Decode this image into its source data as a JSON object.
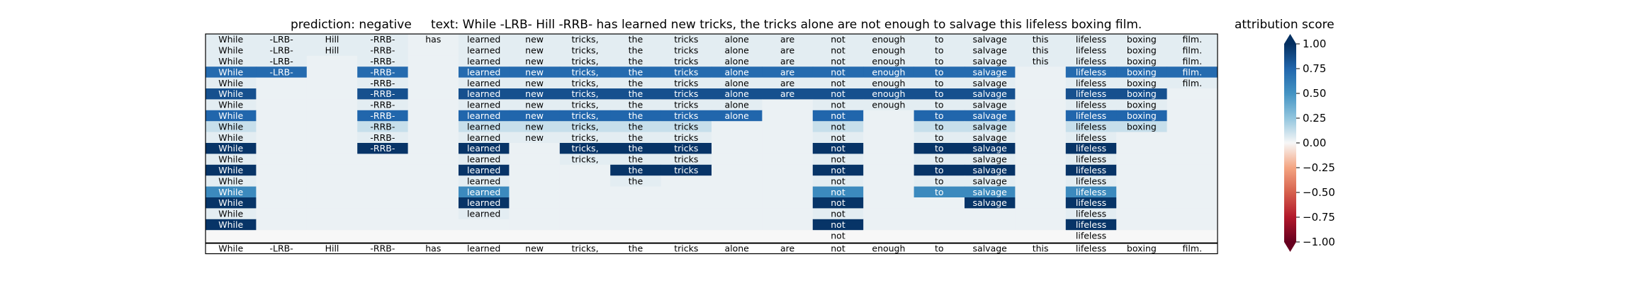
{
  "chart_data": {
    "type": "heatmap",
    "title_prediction": "prediction:  negative",
    "title_text": "text:  While -LRB- Hill -RRB- has learned new tricks, the tricks alone are not enough to salvage this lifeless boxing film.",
    "colorbar_label": "attribution score",
    "colorbar_ticks": [
      "1.00",
      "0.75",
      "0.50",
      "0.25",
      "0.00",
      "−0.25",
      "−0.50",
      "−0.75",
      "−1.00"
    ],
    "colorbar_range": [
      -1,
      1
    ],
    "tokens": [
      "While",
      "-LRB-",
      "Hill",
      "-RRB-",
      "has",
      "learned",
      "new",
      "tricks,",
      "the",
      "tricks",
      "alone",
      "are",
      "not",
      "enough",
      "to",
      "salvage",
      "this",
      "lifeless",
      "boxing",
      "film."
    ],
    "rows": [
      {
        "values": [
          0.05,
          0.05,
          0.05,
          0.05,
          0.03,
          0.05,
          0.05,
          0.05,
          0.05,
          0.05,
          0.05,
          0.05,
          0.05,
          0.05,
          0.05,
          0.05,
          0.05,
          0.05,
          0.05,
          0.05
        ],
        "shown": [
          1,
          1,
          1,
          1,
          1,
          1,
          1,
          1,
          1,
          1,
          1,
          1,
          1,
          1,
          1,
          1,
          1,
          1,
          1,
          1
        ]
      },
      {
        "values": [
          0.05,
          0.05,
          0.05,
          0.05,
          0.03,
          0.05,
          0.05,
          0.05,
          0.05,
          0.05,
          0.05,
          0.05,
          0.05,
          0.05,
          0.05,
          0.05,
          0.05,
          0.05,
          0.05,
          0.05
        ],
        "shown": [
          1,
          1,
          1,
          1,
          0,
          1,
          1,
          1,
          1,
          1,
          1,
          1,
          1,
          1,
          1,
          1,
          1,
          1,
          1,
          1
        ]
      },
      {
        "values": [
          0.05,
          0.05,
          0.03,
          0.05,
          0.03,
          0.05,
          0.05,
          0.05,
          0.05,
          0.05,
          0.05,
          0.05,
          0.05,
          0.05,
          0.05,
          0.05,
          0.05,
          0.05,
          0.05,
          0.05
        ],
        "shown": [
          1,
          1,
          0,
          1,
          0,
          1,
          1,
          1,
          1,
          1,
          1,
          1,
          1,
          1,
          1,
          1,
          1,
          1,
          1,
          1
        ]
      },
      {
        "values": [
          0.72,
          0.72,
          0.03,
          0.72,
          0.03,
          0.72,
          0.72,
          0.72,
          0.72,
          0.72,
          0.72,
          0.72,
          0.72,
          0.72,
          0.72,
          0.72,
          0.03,
          0.72,
          0.72,
          0.72
        ],
        "shown": [
          1,
          1,
          0,
          1,
          0,
          1,
          1,
          1,
          1,
          1,
          1,
          1,
          1,
          1,
          1,
          1,
          0,
          1,
          1,
          1
        ]
      },
      {
        "values": [
          0.05,
          0.03,
          0.03,
          0.05,
          0.03,
          0.05,
          0.05,
          0.05,
          0.05,
          0.05,
          0.05,
          0.05,
          0.05,
          0.05,
          0.05,
          0.05,
          0.03,
          0.05,
          0.05,
          0.05
        ],
        "shown": [
          1,
          0,
          0,
          1,
          0,
          1,
          1,
          1,
          1,
          1,
          1,
          1,
          1,
          1,
          1,
          1,
          0,
          1,
          1,
          1
        ]
      },
      {
        "values": [
          0.85,
          0.03,
          0.03,
          0.85,
          0.03,
          0.85,
          0.85,
          0.85,
          0.85,
          0.85,
          0.85,
          0.85,
          0.85,
          0.85,
          0.85,
          0.85,
          0.03,
          0.85,
          0.85,
          0.03
        ],
        "shown": [
          1,
          0,
          0,
          1,
          0,
          1,
          1,
          1,
          1,
          1,
          1,
          1,
          1,
          1,
          1,
          1,
          0,
          1,
          1,
          0
        ]
      },
      {
        "values": [
          0.05,
          0.03,
          0.03,
          0.05,
          0.03,
          0.05,
          0.05,
          0.05,
          0.05,
          0.05,
          0.05,
          0.03,
          0.05,
          0.05,
          0.05,
          0.05,
          0.03,
          0.05,
          0.05,
          0.03
        ],
        "shown": [
          1,
          0,
          0,
          1,
          0,
          1,
          1,
          1,
          1,
          1,
          1,
          0,
          1,
          1,
          1,
          1,
          0,
          1,
          1,
          0
        ]
      },
      {
        "values": [
          0.75,
          0.03,
          0.03,
          0.75,
          0.03,
          0.75,
          0.75,
          0.75,
          0.75,
          0.75,
          0.75,
          0.03,
          0.75,
          0.03,
          0.75,
          0.75,
          0.03,
          0.75,
          0.75,
          0.03
        ],
        "shown": [
          1,
          0,
          0,
          1,
          0,
          1,
          1,
          1,
          1,
          1,
          1,
          0,
          1,
          0,
          1,
          1,
          0,
          1,
          1,
          0
        ]
      },
      {
        "values": [
          0.12,
          0.03,
          0.03,
          0.12,
          0.03,
          0.12,
          0.12,
          0.12,
          0.12,
          0.12,
          0.03,
          0.03,
          0.12,
          0.03,
          0.12,
          0.12,
          0.03,
          0.12,
          0.12,
          0.03
        ],
        "shown": [
          1,
          0,
          0,
          1,
          0,
          1,
          1,
          1,
          1,
          1,
          0,
          0,
          1,
          0,
          1,
          1,
          0,
          1,
          1,
          0
        ]
      },
      {
        "values": [
          0.05,
          0.03,
          0.03,
          0.05,
          0.03,
          0.05,
          0.05,
          0.05,
          0.05,
          0.05,
          0.03,
          0.03,
          0.05,
          0.03,
          0.05,
          0.05,
          0.03,
          0.05,
          0.03,
          0.03
        ],
        "shown": [
          1,
          0,
          0,
          1,
          0,
          1,
          1,
          1,
          1,
          1,
          0,
          0,
          1,
          0,
          1,
          1,
          0,
          1,
          0,
          0
        ]
      },
      {
        "values": [
          0.98,
          0.03,
          0.03,
          0.98,
          0.03,
          0.98,
          0.03,
          0.98,
          0.98,
          0.98,
          0.03,
          0.03,
          0.98,
          0.03,
          0.98,
          0.98,
          0.03,
          0.98,
          0.03,
          0.03
        ],
        "shown": [
          1,
          0,
          0,
          1,
          0,
          1,
          0,
          1,
          1,
          1,
          0,
          0,
          1,
          0,
          1,
          1,
          0,
          1,
          0,
          0
        ]
      },
      {
        "values": [
          0.05,
          0.03,
          0.03,
          0.03,
          0.03,
          0.05,
          0.03,
          0.05,
          0.05,
          0.05,
          0.03,
          0.03,
          0.05,
          0.03,
          0.05,
          0.05,
          0.03,
          0.05,
          0.03,
          0.03
        ],
        "shown": [
          1,
          0,
          0,
          0,
          0,
          1,
          0,
          1,
          1,
          1,
          0,
          0,
          1,
          0,
          1,
          1,
          0,
          1,
          0,
          0
        ]
      },
      {
        "values": [
          0.98,
          0.03,
          0.03,
          0.03,
          0.03,
          0.98,
          0.03,
          0.03,
          0.98,
          0.98,
          0.03,
          0.03,
          0.98,
          0.03,
          0.98,
          0.98,
          0.03,
          0.98,
          0.03,
          0.03
        ],
        "shown": [
          1,
          0,
          0,
          0,
          0,
          1,
          0,
          0,
          1,
          1,
          0,
          0,
          1,
          0,
          1,
          1,
          0,
          1,
          0,
          0
        ]
      },
      {
        "values": [
          0.05,
          0.03,
          0.03,
          0.03,
          0.03,
          0.05,
          0.03,
          0.03,
          0.05,
          0.03,
          0.03,
          0.03,
          0.05,
          0.03,
          0.05,
          0.05,
          0.03,
          0.05,
          0.03,
          0.03
        ],
        "shown": [
          1,
          0,
          0,
          0,
          0,
          1,
          0,
          0,
          1,
          0,
          0,
          0,
          1,
          0,
          1,
          1,
          0,
          1,
          0,
          0
        ]
      },
      {
        "values": [
          0.55,
          0.03,
          0.03,
          0.03,
          0.03,
          0.55,
          0.03,
          0.03,
          0.03,
          0.03,
          0.03,
          0.03,
          0.55,
          0.03,
          0.55,
          0.55,
          0.03,
          0.55,
          0.03,
          0.03
        ],
        "shown": [
          1,
          0,
          0,
          0,
          0,
          1,
          0,
          0,
          0,
          0,
          0,
          0,
          1,
          0,
          1,
          1,
          0,
          1,
          0,
          0
        ]
      },
      {
        "values": [
          0.98,
          0.03,
          0.03,
          0.03,
          0.03,
          0.98,
          0.03,
          0.03,
          0.03,
          0.03,
          0.03,
          0.03,
          0.98,
          0.03,
          0.03,
          0.98,
          0.03,
          0.98,
          0.03,
          0.03
        ],
        "shown": [
          1,
          0,
          0,
          0,
          0,
          1,
          0,
          0,
          0,
          0,
          0,
          0,
          1,
          0,
          0,
          1,
          0,
          1,
          0,
          0
        ]
      },
      {
        "values": [
          0.05,
          0.03,
          0.03,
          0.03,
          0.03,
          0.05,
          0.03,
          0.03,
          0.03,
          0.03,
          0.03,
          0.03,
          0.05,
          0.03,
          0.03,
          0.03,
          0.03,
          0.05,
          0.03,
          0.03
        ],
        "shown": [
          1,
          0,
          0,
          0,
          0,
          1,
          0,
          0,
          0,
          0,
          0,
          0,
          1,
          0,
          0,
          0,
          0,
          1,
          0,
          0
        ]
      },
      {
        "values": [
          0.98,
          0.03,
          0.03,
          0.03,
          0.03,
          0.03,
          0.03,
          0.03,
          0.03,
          0.03,
          0.03,
          0.03,
          0.98,
          0.03,
          0.03,
          0.03,
          0.03,
          0.98,
          0.03,
          0.03
        ],
        "shown": [
          1,
          0,
          0,
          0,
          0,
          0,
          0,
          0,
          0,
          0,
          0,
          0,
          1,
          0,
          0,
          0,
          0,
          1,
          0,
          0
        ]
      },
      {
        "values": [
          0.0,
          0.0,
          0.0,
          0.0,
          0.0,
          0.0,
          0.0,
          0.0,
          0.0,
          0.0,
          0.0,
          0.0,
          0.0,
          0.0,
          0.0,
          0.0,
          0.0,
          0.0,
          0.0,
          0.0
        ],
        "shown": [
          0,
          0,
          0,
          0,
          0,
          0,
          0,
          0,
          0,
          0,
          0,
          0,
          1,
          0,
          0,
          0,
          0,
          1,
          0,
          0
        ]
      }
    ],
    "bottom_row": [
      "While",
      "-LRB-",
      "Hill",
      "-RRB-",
      "has",
      "learned",
      "new",
      "tricks,",
      "the",
      "tricks",
      "alone",
      "are",
      "not",
      "enough",
      "to",
      "salvage",
      "this",
      "lifeless",
      "boxing",
      "film."
    ]
  }
}
